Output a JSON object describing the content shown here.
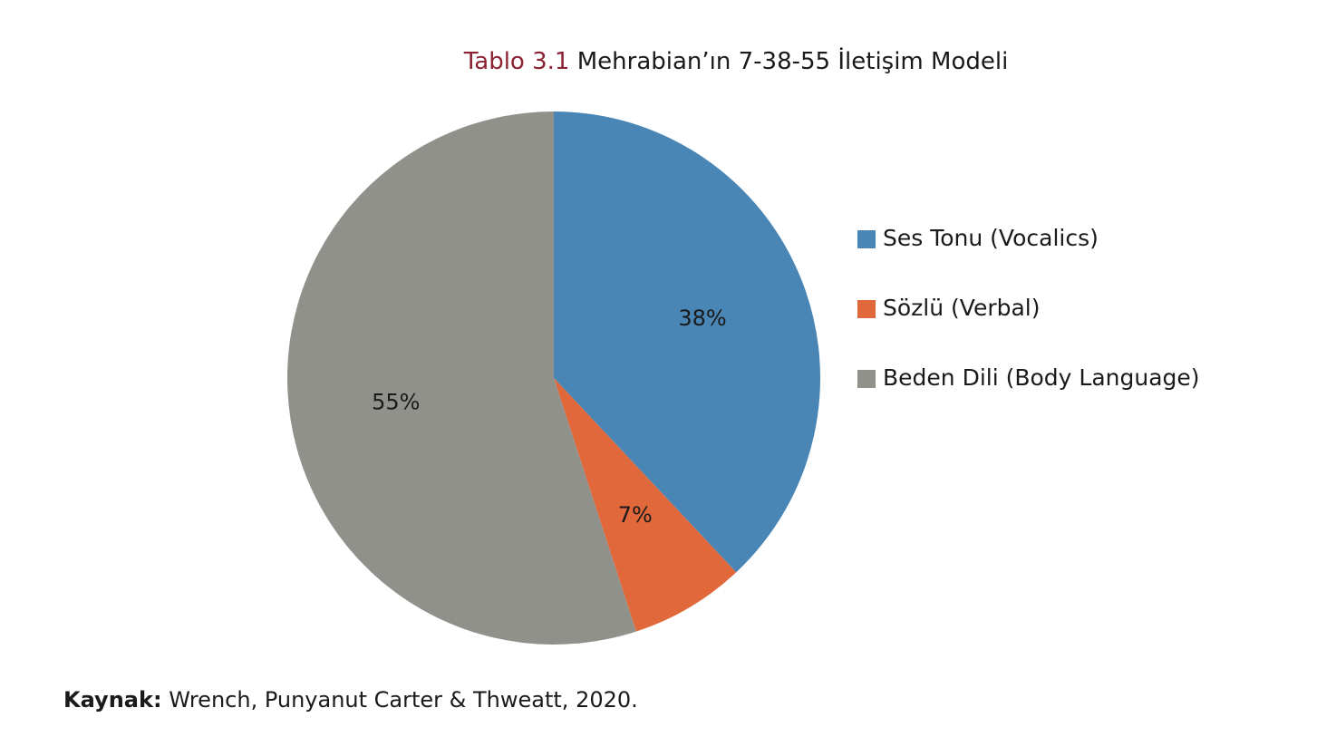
{
  "chart_data": {
    "type": "pie",
    "title_number": "Tablo 3.1",
    "title": "Mehrabian’ın 7-38-55 İletişim Modeli",
    "categories": [
      "Ses Tonu (Vocalics)",
      "Sözlü (Verbal)",
      "Beden Dili (Body Language)"
    ],
    "values": [
      38,
      7,
      55
    ],
    "value_labels": [
      "38%",
      "7%",
      "55%"
    ],
    "colors": [
      "#4a86b5",
      "#e0683a",
      "#91918c"
    ],
    "legend": "right",
    "source_label": "Kaynak:",
    "source": "Wrench, Punyanut Carter & Thweatt, 2020."
  }
}
